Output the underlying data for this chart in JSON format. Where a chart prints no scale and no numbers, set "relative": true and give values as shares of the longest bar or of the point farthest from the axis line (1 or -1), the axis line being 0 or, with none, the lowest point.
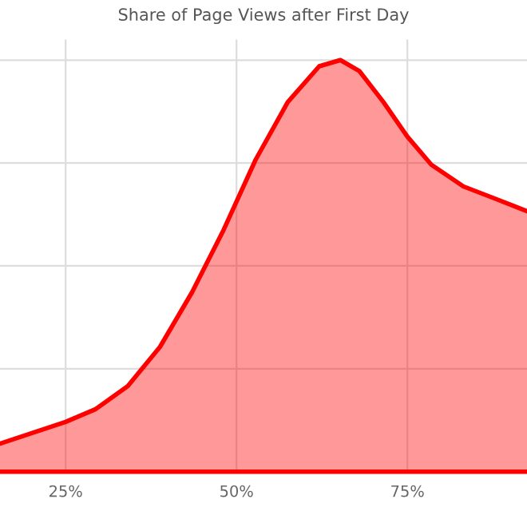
{
  "chart_data": {
    "type": "area",
    "title": "Share of Page Views after First Day",
    "relative": true,
    "x": [
      15.4,
      25,
      29.4,
      34.1,
      38.8,
      43.5,
      48.1,
      52.8,
      57.5,
      62.1,
      65.2,
      68,
      71.5,
      75,
      78.5,
      83.2,
      87.9,
      92.5
    ],
    "series": [
      {
        "color": "#ff0000",
        "values": [
          0.068,
          0.121,
          0.152,
          0.208,
          0.303,
          0.436,
          0.587,
          0.758,
          0.898,
          0.985,
          1,
          0.973,
          0.898,
          0.814,
          0.746,
          0.693,
          0.663,
          0.633
        ]
      }
    ],
    "xlim": [
      15.4,
      92.5
    ],
    "xticks": [
      {
        "value": 25,
        "label": "25%"
      },
      {
        "value": 50,
        "label": "50%"
      },
      {
        "value": 75,
        "label": "75%"
      }
    ],
    "grid": true
  }
}
